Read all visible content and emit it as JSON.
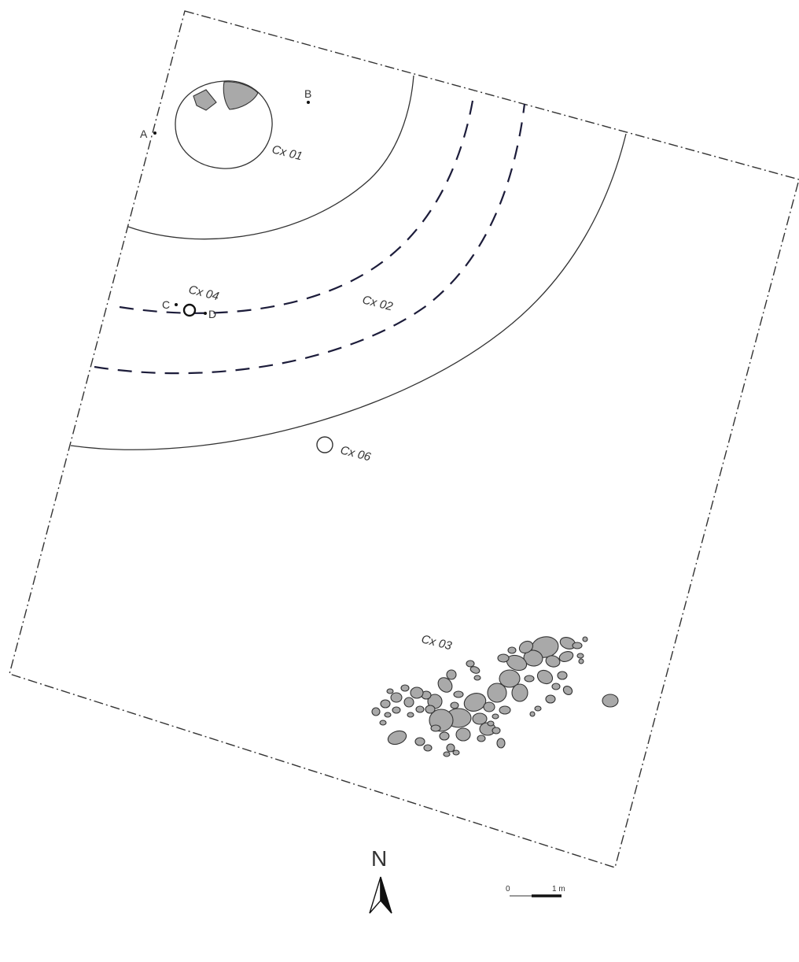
{
  "features": {
    "cx01": "Cx 01",
    "cx02": "Cx 02",
    "cx03": "Cx 03",
    "cx04": "Cx 04",
    "cx06": "Cx 06"
  },
  "points": {
    "a": "A",
    "b": "B",
    "c": "C",
    "d": "D"
  },
  "north_arrow": {
    "letter": "N"
  },
  "scale_bar": {
    "start_label": "0",
    "end_label": "1 m"
  },
  "colors": {
    "stone_fill": "#a9a9a9",
    "line": "#333333",
    "dashed_line": "#1c1c3a"
  }
}
